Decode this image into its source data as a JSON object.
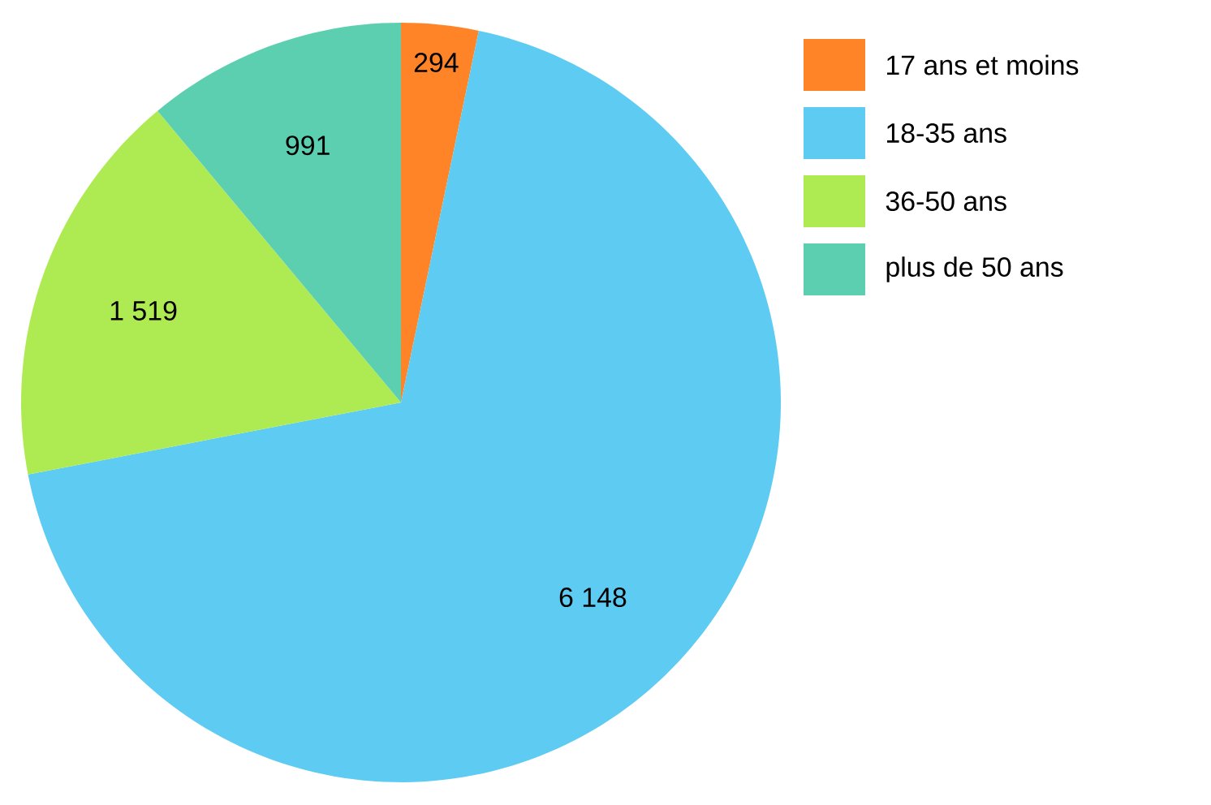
{
  "chart_data": {
    "type": "pie",
    "categories": [
      "17 ans et moins",
      "18-35 ans",
      "36-50 ans",
      "plus de 50 ans"
    ],
    "values": [
      294,
      6148,
      1519,
      991
    ],
    "value_labels": [
      "294",
      "6 148",
      "1 519",
      "991"
    ],
    "colors": [
      "#fe8427",
      "#5dcbf2",
      "#aeea52",
      "#5ccfb0"
    ],
    "legend": "top right"
  }
}
